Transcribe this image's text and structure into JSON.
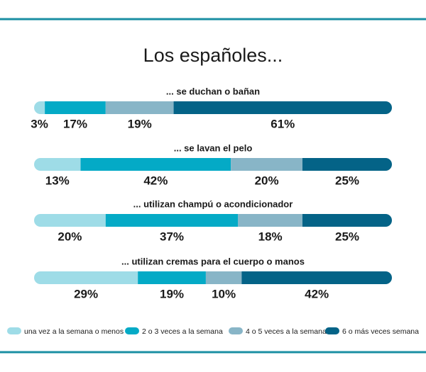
{
  "chart_data": {
    "type": "bar",
    "orientation": "horizontal",
    "stacked": true,
    "title": "Los españoles...",
    "categories": [
      "... se duchan o bañan",
      "... se lavan el pelo",
      "... utilizan champú o acondicionador",
      "... utilizan cremas para el cuerpo o manos"
    ],
    "xlim": [
      0,
      100
    ],
    "series": [
      {
        "name": "una vez a la semana o menos",
        "color": "#9edce7",
        "values": [
          3,
          13,
          20,
          29
        ],
        "value_labels": [
          "3%",
          "13%",
          "20%",
          "29%"
        ]
      },
      {
        "name": "2 o 3 veces a la semana",
        "color": "#04aac6",
        "values": [
          17,
          42,
          37,
          19
        ],
        "value_labels": [
          "17%",
          "42%",
          "37%",
          "19%"
        ]
      },
      {
        "name": "4 o 5 veces a la semana",
        "color": "#88b5c7",
        "values": [
          19,
          20,
          18,
          10
        ],
        "value_labels": [
          "19%",
          "20%",
          "18%",
          "10%"
        ]
      },
      {
        "name": "6 o más veces semana",
        "color": "#046387",
        "values": [
          61,
          25,
          25,
          42
        ],
        "value_labels": [
          "61%",
          "25%",
          "25%",
          "42%"
        ]
      }
    ],
    "legend": "bottom"
  }
}
